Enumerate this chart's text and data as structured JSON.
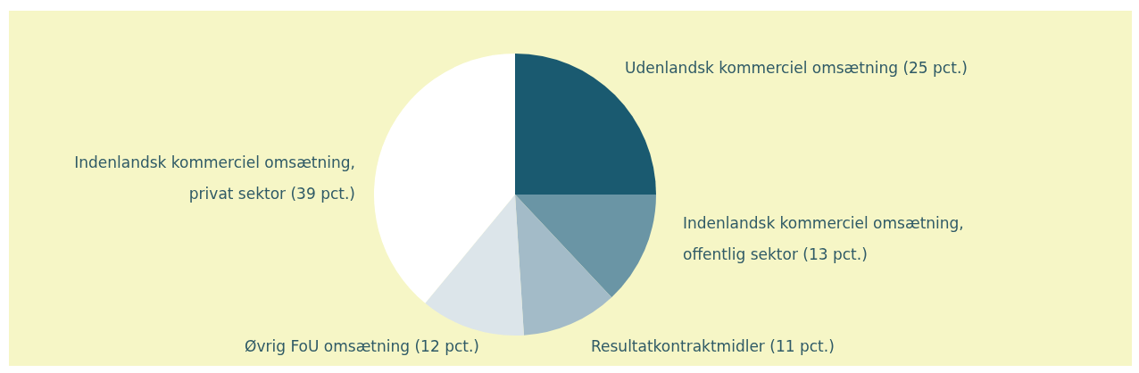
{
  "chart_data": {
    "type": "pie",
    "categories": [
      "Udenlandsk kommerciel omsætning (25 pct.)",
      "Indenlandsk kommerciel omsætning, offentlig sektor (13 pct.)",
      "Resultatkontraktmidler (11 pct.)",
      "Øvrig FoU omsætning (12 pct.)",
      "Indenlandsk kommerciel omsætning, privat sektor (39 pct.)"
    ],
    "values": [
      25,
      13,
      11,
      12,
      39
    ],
    "colors": [
      "#1a5a70",
      "#6a95a5",
      "#a3bbc8",
      "#dce5ea",
      "#ffffff"
    ]
  }
}
